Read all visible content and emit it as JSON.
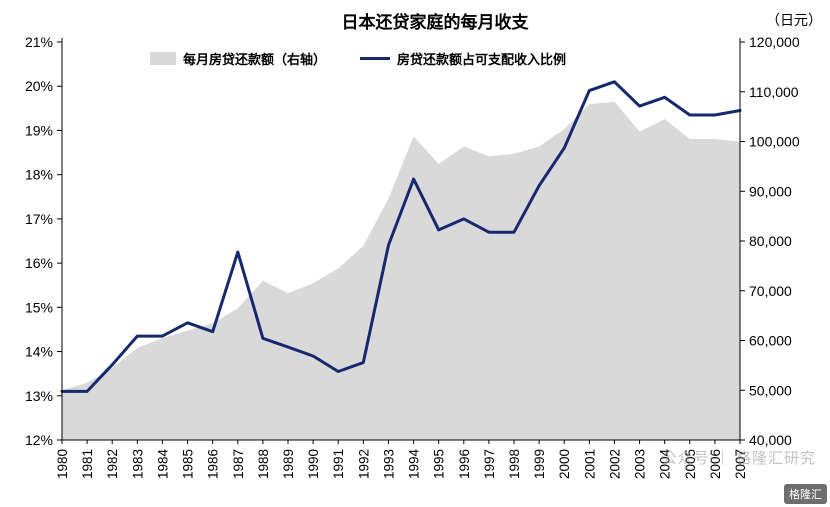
{
  "chart_data": {
    "type": "area",
    "title": "日本还贷家庭的每月收支",
    "x": [
      1980,
      1981,
      1982,
      1983,
      1984,
      1985,
      1986,
      1987,
      1988,
      1989,
      1990,
      1991,
      1992,
      1993,
      1994,
      1995,
      1996,
      1997,
      1998,
      1999,
      2000,
      2001,
      2002,
      2003,
      2004,
      2005,
      2006,
      2007
    ],
    "series": [
      {
        "name": "每月房贷还款额（右轴）",
        "type": "area",
        "axis": "right",
        "color": "#d9d9d9",
        "values": [
          50000,
          51500,
          54500,
          58500,
          60500,
          62000,
          63500,
          66500,
          72000,
          69500,
          71500,
          74500,
          79000,
          88500,
          101000,
          95500,
          99000,
          97000,
          97500,
          99000,
          102500,
          107500,
          108000,
          102000,
          104500,
          100500,
          100500,
          100000
        ]
      },
      {
        "name": "房贷还款额占可支配收入比例",
        "type": "line",
        "axis": "left",
        "color": "#16286e",
        "values": [
          13.1,
          13.1,
          13.7,
          14.35,
          14.35,
          14.65,
          14.45,
          16.25,
          14.3,
          14.1,
          13.9,
          13.55,
          13.75,
          16.4,
          17.9,
          16.75,
          17.0,
          16.7,
          16.7,
          17.75,
          18.6,
          19.9,
          20.1,
          19.55,
          19.75,
          19.35,
          19.35,
          19.45
        ]
      }
    ],
    "left_axis": {
      "min": 12,
      "max": 21,
      "step": 1,
      "format": "percent",
      "ticks": [
        "21%",
        "20%",
        "19%",
        "18%",
        "17%",
        "16%",
        "15%",
        "14%",
        "13%",
        "12%"
      ]
    },
    "right_axis": {
      "min": 40000,
      "max": 120000,
      "step": 10000,
      "label": "（日元）",
      "ticks": [
        "120,000",
        "110,000",
        "100,000",
        "90,000",
        "80,000",
        "70,000",
        "60,000",
        "50,000",
        "40,000"
      ]
    },
    "legend_position": "top",
    "grid": false
  },
  "watermark": {
    "text": "公众号 ｜ 格隆汇研究"
  },
  "logo": {
    "text": "格隆汇"
  }
}
